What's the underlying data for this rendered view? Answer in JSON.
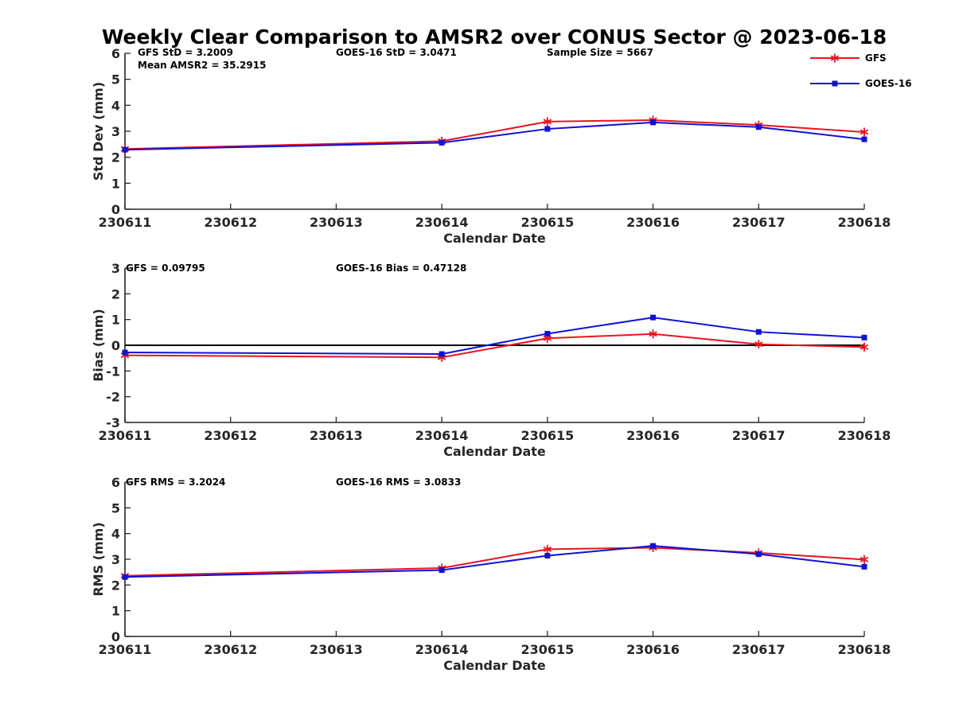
{
  "title": "Weekly Clear Comparison to AMSR2 over CONUS Sector @ 2023-06-18",
  "colors": {
    "gfs": "#e8141e",
    "goes": "#1010d8",
    "axis": "#262626",
    "zero": "#000000"
  },
  "legend": {
    "placement": "top-right",
    "items": [
      {
        "label": "GFS",
        "color": "#e8141e",
        "marker": "asterisk"
      },
      {
        "label": "GOES-16",
        "color": "#1010d8",
        "marker": "square"
      }
    ]
  },
  "chart_data": [
    {
      "type": "line",
      "ylabel": "Std Dev (mm)",
      "xlabel": "Calendar Date",
      "x_ticks": [
        "230611",
        "230612",
        "230613",
        "230614",
        "230615",
        "230616",
        "230617",
        "230618"
      ],
      "ylim": [
        0,
        6
      ],
      "y_ticks": [
        "0",
        "1",
        "2",
        "3",
        "4",
        "5",
        "6"
      ],
      "zero_line": false,
      "annotations": [
        "GFS StD = 3.2009",
        "GOES-16 StD = 3.0471",
        "Sample Size = 5667",
        "Mean AMSR2 = 35.2915"
      ],
      "x": [
        0,
        3,
        4,
        5,
        6,
        7
      ],
      "series": [
        {
          "name": "GFS",
          "values": [
            2.32,
            2.62,
            3.37,
            3.43,
            3.24,
            2.97
          ]
        },
        {
          "name": "GOES-16",
          "values": [
            2.29,
            2.56,
            3.09,
            3.34,
            3.16,
            2.69
          ]
        }
      ]
    },
    {
      "type": "line",
      "ylabel": "Bias (mm)",
      "xlabel": "Calendar Date",
      "x_ticks": [
        "230611",
        "230612",
        "230613",
        "230614",
        "230615",
        "230616",
        "230617",
        "230618"
      ],
      "ylim": [
        -3,
        3
      ],
      "y_ticks": [
        "-3",
        "-2",
        "-1",
        "0",
        "1",
        "2",
        "3"
      ],
      "zero_line": true,
      "annotations": [
        "GFS = 0.09795",
        "GOES-16 Bias  = 0.47128"
      ],
      "x": [
        0,
        3,
        4,
        5,
        6,
        7
      ],
      "series": [
        {
          "name": "GFS",
          "values": [
            -0.39,
            -0.47,
            0.27,
            0.44,
            0.04,
            -0.07
          ]
        },
        {
          "name": "GOES-16",
          "values": [
            -0.28,
            -0.34,
            0.45,
            1.08,
            0.52,
            0.3
          ]
        }
      ]
    },
    {
      "type": "line",
      "ylabel": "RMS (mm)",
      "xlabel": "Calendar Date",
      "x_ticks": [
        "230611",
        "230612",
        "230613",
        "230614",
        "230615",
        "230616",
        "230617",
        "230618"
      ],
      "ylim": [
        0,
        6
      ],
      "y_ticks": [
        "0",
        "1",
        "2",
        "3",
        "4",
        "5",
        "6"
      ],
      "zero_line": false,
      "annotations": [
        "GFS RMS = 3.2024",
        "GOES-16 RMS = 3.0833"
      ],
      "x": [
        0,
        3,
        4,
        5,
        6,
        7
      ],
      "series": [
        {
          "name": "GFS",
          "values": [
            2.36,
            2.66,
            3.39,
            3.45,
            3.25,
            2.99
          ]
        },
        {
          "name": "GOES-16",
          "values": [
            2.31,
            2.58,
            3.14,
            3.52,
            3.2,
            2.71
          ]
        }
      ]
    }
  ]
}
